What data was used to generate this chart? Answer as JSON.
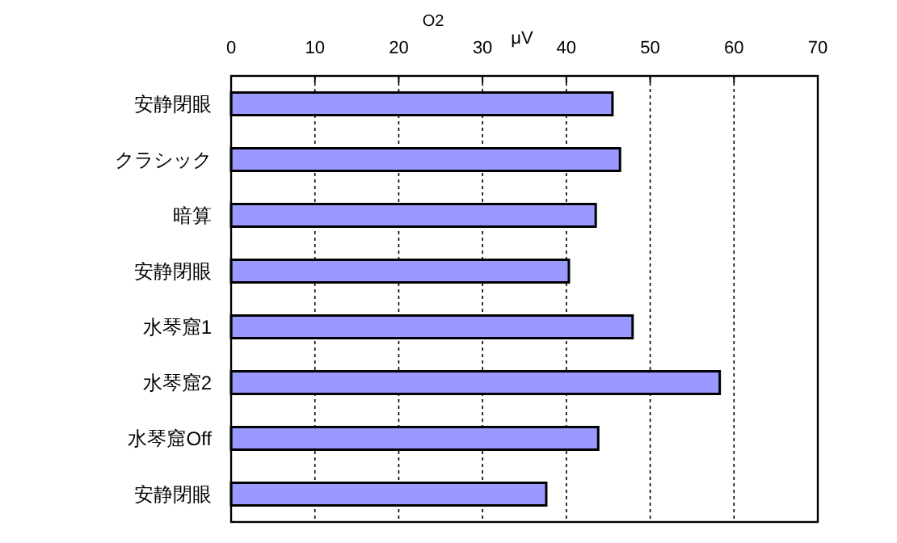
{
  "chart_data": {
    "type": "bar",
    "orientation": "horizontal",
    "title": "O2",
    "xlabel": "μV",
    "categories": [
      "安静閉眼",
      "クラシック",
      "暗算",
      "安静閉眼",
      "水琴窟1",
      "水琴窟2",
      "水琴窟Off",
      "安静閉眼"
    ],
    "values": [
      45.5,
      46.4,
      43.5,
      40.3,
      47.9,
      58.3,
      43.8,
      37.6
    ],
    "color": "#9999ff",
    "xlim": [
      0,
      70
    ],
    "xticks": [
      0,
      10,
      20,
      30,
      40,
      50,
      60,
      70
    ],
    "grid": "x"
  }
}
